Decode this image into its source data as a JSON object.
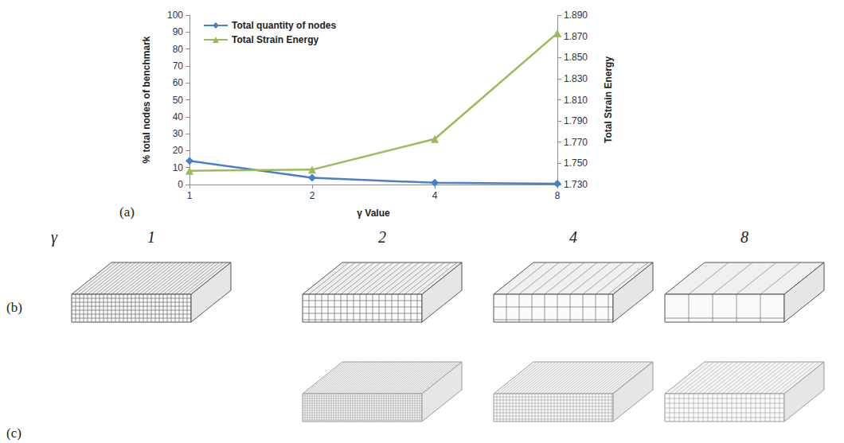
{
  "chart_data": {
    "type": "line",
    "x_label": "γ Value",
    "y_label": "% total nodes of benchmark",
    "y2_label": "Total Strain Energy",
    "categories": [
      "1",
      "2",
      "4",
      "8"
    ],
    "series": [
      {
        "name": "Total quantity of nodes",
        "color": "#4a7fc8",
        "marker": "diamond",
        "values": [
          14,
          4,
          1,
          0.5
        ]
      },
      {
        "name": "Total Strain Energy",
        "color": "#9bbb59",
        "marker": "triangle",
        "axis": "y2",
        "values": [
          1.743,
          1.744,
          1.773,
          1.873
        ]
      }
    ],
    "ylim": [
      0,
      100
    ],
    "yticks": [
      0,
      10,
      20,
      30,
      40,
      50,
      60,
      70,
      80,
      90,
      100
    ],
    "y2lim": [
      1.73,
      1.89
    ],
    "y2ticks": [
      {
        "value": 1.73,
        "label": "1.730"
      },
      {
        "value": 1.75,
        "label": "1.750"
      },
      {
        "value": 1.77,
        "label": "1.770"
      },
      {
        "value": 1.79,
        "label": "1.790"
      },
      {
        "value": 1.81,
        "label": "1.810"
      },
      {
        "value": 1.83,
        "label": "1.830"
      },
      {
        "value": 1.85,
        "label": "1.850"
      },
      {
        "value": 1.87,
        "label": "1.870"
      },
      {
        "value": 1.89,
        "label": "1.890"
      }
    ],
    "grid": false,
    "legend": "upper left",
    "data_labels": false
  },
  "figure": {
    "panel_labels": [
      "(a)",
      "(b)",
      "(c)"
    ],
    "gamma_symbol": "γ",
    "gamma_values": [
      "1",
      "2",
      "4",
      "8"
    ]
  }
}
